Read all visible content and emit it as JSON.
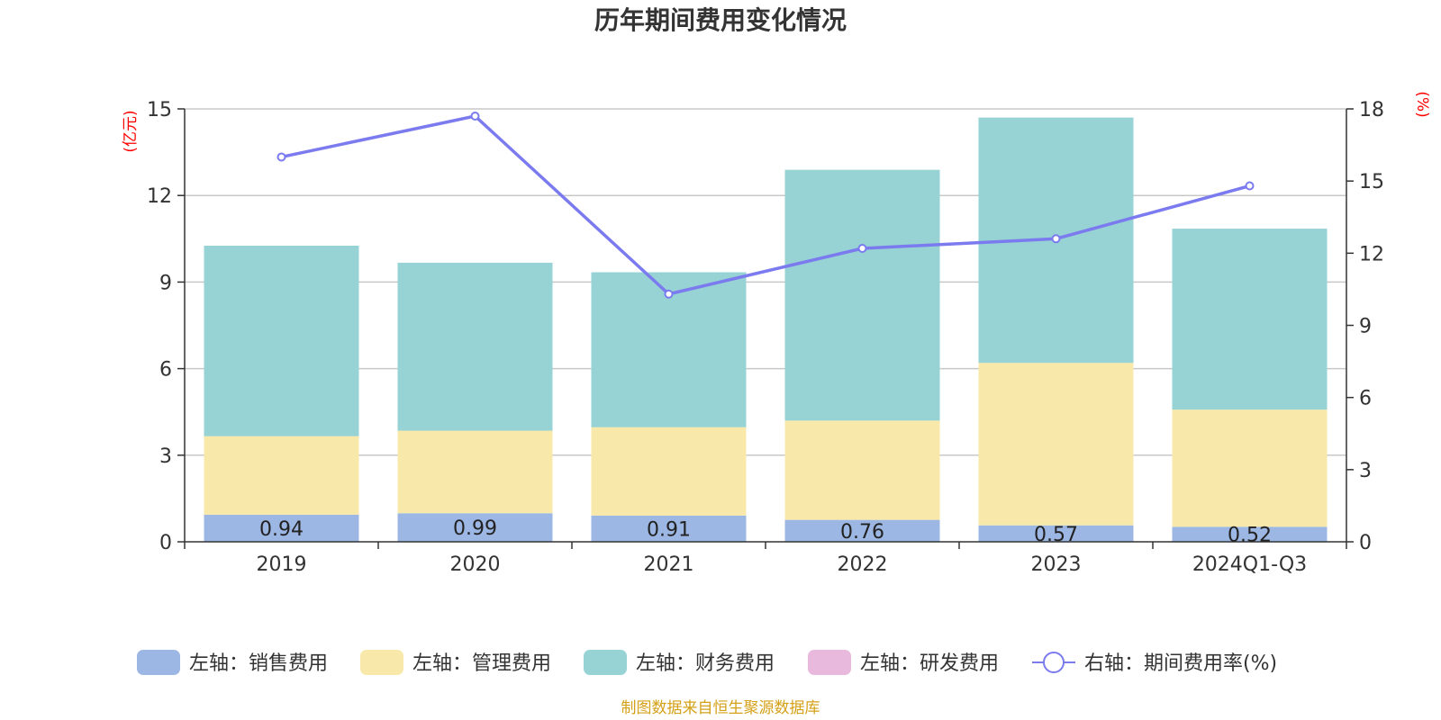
{
  "chart_data": {
    "type": "bar",
    "stacked": true,
    "title": "历年期间费用变化情况",
    "left_axis_unit": "(亿元)",
    "right_axis_unit": "(%)",
    "categories": [
      "2019",
      "2020",
      "2021",
      "2022",
      "2023",
      "2024Q1-Q3"
    ],
    "left_axis": {
      "min": 0,
      "max": 15,
      "ticks": [
        "0",
        "3",
        "6",
        "9",
        "12",
        "15"
      ]
    },
    "right_axis": {
      "min": 0,
      "max": 18,
      "ticks": [
        "0",
        "3",
        "6",
        "9",
        "12",
        "15",
        "18"
      ]
    },
    "grid": true,
    "legend_position": "bottom",
    "series": [
      {
        "name": "左轴：销售费用",
        "axis": "left",
        "type": "bar",
        "color": "#9cb7e3",
        "values": [
          0.94,
          0.99,
          0.91,
          0.76,
          0.57,
          0.52
        ],
        "labels": [
          "0.94",
          "0.99",
          "0.91",
          "0.76",
          "0.57",
          "0.52"
        ]
      },
      {
        "name": "左轴：管理费用",
        "axis": "left",
        "type": "bar",
        "color": "#f8e8a9",
        "values": [
          2.72,
          2.86,
          3.06,
          3.44,
          5.63,
          4.06
        ]
      },
      {
        "name": "左轴：财务费用",
        "axis": "left",
        "type": "bar",
        "color": "#97d3d4",
        "values": [
          6.6,
          5.82,
          5.37,
          8.69,
          8.5,
          6.27
        ]
      },
      {
        "name": "左轴：研发费用",
        "axis": "left",
        "type": "bar",
        "color": "#e8b9dc",
        "values": [
          0,
          0,
          0,
          0,
          0,
          0
        ]
      },
      {
        "name": "右轴：期间费用率(%)",
        "axis": "right",
        "type": "line",
        "color": "#7b7bef",
        "values": [
          16.0,
          17.7,
          10.3,
          12.2,
          12.6,
          14.8
        ]
      }
    ],
    "source_note": "制图数据来自恒生聚源数据库"
  }
}
